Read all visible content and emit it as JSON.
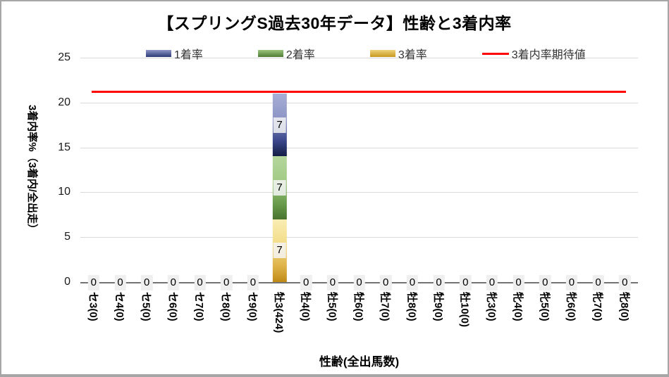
{
  "title": "【スプリングS過去30年データ】性齢と3着内率",
  "legend": [
    {
      "label": "1着率",
      "type": "box",
      "color_light": "#8d96c6",
      "color_dark": "#2c3a76"
    },
    {
      "label": "2着率",
      "type": "box",
      "color_light": "#9cc47e",
      "color_dark": "#4e7c33"
    },
    {
      "label": "3着率",
      "type": "box",
      "color_light": "#eed27a",
      "color_dark": "#c8971f"
    },
    {
      "label": "3着内率期待値",
      "type": "line",
      "color": "#ff0000"
    }
  ],
  "chart_data": {
    "type": "bar",
    "stacked": true,
    "title": "【スプリングS過去30年データ】性齢と3着内率",
    "xlabel": "性齢(全出馬数)",
    "ylabel": "3着内率%（3着内/全出走）",
    "ylim": [
      0,
      25
    ],
    "yticks": [
      25,
      20,
      15,
      10,
      5,
      0
    ],
    "grid": true,
    "legend_position": "top",
    "categories": [
      "セ3(0)",
      "セ4(0)",
      "セ5(0)",
      "セ6(0)",
      "セ7(0)",
      "セ8(0)",
      "セ9(0)",
      "牡3(424)",
      "牡4(0)",
      "牡5(0)",
      "牡6(0)",
      "牡7(0)",
      "牡8(0)",
      "牡9(0)",
      "牡10(0)",
      "牝3(0)",
      "牝4(0)",
      "牝5(0)",
      "牝6(0)",
      "牝7(0)",
      "牝8(0)"
    ],
    "series": [
      {
        "name": "1着率",
        "key": "s1",
        "values": [
          0,
          0,
          0,
          0,
          0,
          0,
          0,
          7,
          0,
          0,
          0,
          0,
          0,
          0,
          0,
          0,
          0,
          0,
          0,
          0,
          0
        ],
        "color_light": "#a8afd6",
        "color_mid": "#8d96c6",
        "color_mid2": "#39468a",
        "color_dark": "#141d45"
      },
      {
        "name": "2着率",
        "key": "s2",
        "values": [
          0,
          0,
          0,
          0,
          0,
          0,
          0,
          7,
          0,
          0,
          0,
          0,
          0,
          0,
          0,
          0,
          0,
          0,
          0,
          0,
          0
        ],
        "color_light": "#b5d69c",
        "color_mid": "#a3cb87",
        "color_mid2": "#679a4a",
        "color_dark": "#49732f"
      },
      {
        "name": "3着率",
        "key": "s3",
        "values": [
          0,
          0,
          0,
          0,
          0,
          0,
          0,
          7,
          0,
          0,
          0,
          0,
          0,
          0,
          0,
          0,
          0,
          0,
          0,
          0,
          0
        ],
        "color_light": "#f9edb3",
        "color_mid": "#f3dd8a",
        "color_mid2": "#ddb146",
        "color_dark": "#bf8a15"
      }
    ],
    "expected_line": {
      "name": "3着内率期待値",
      "value": 21.2,
      "color": "#ff0000"
    },
    "colors": {
      "gridline": "#d9d9d9",
      "axis_line": "#737373",
      "label_background": "#efefef",
      "border": "#a6a6a6"
    }
  }
}
